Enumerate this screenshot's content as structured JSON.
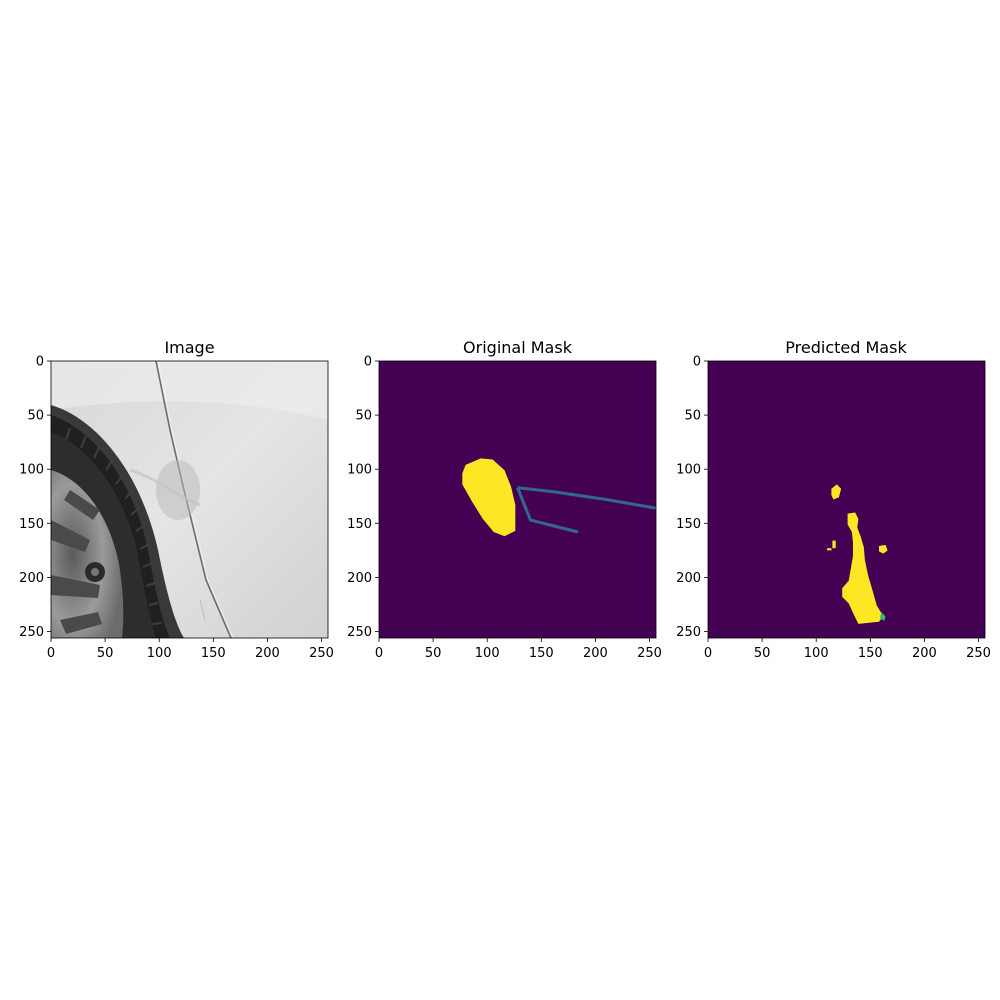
{
  "chart_data": [
    {
      "type": "image",
      "title": "Image",
      "xlim": [
        0,
        256
      ],
      "ylim": [
        256,
        0
      ],
      "xticks": [
        0,
        50,
        100,
        150,
        200,
        250
      ],
      "yticks": [
        0,
        50,
        100,
        150,
        200,
        250
      ],
      "content": "photo of a white car door with a dent near a tire"
    },
    {
      "type": "heatmap",
      "title": "Original Mask",
      "xlim": [
        0,
        256
      ],
      "ylim": [
        256,
        0
      ],
      "xticks": [
        0,
        50,
        100,
        150,
        200,
        250
      ],
      "yticks": [
        0,
        50,
        100,
        150,
        200,
        250
      ],
      "colors": {
        "background": "#440154",
        "class_1": "#fde725",
        "class_2": "#31688e"
      },
      "regions": [
        {
          "class": "class_1",
          "shape": "polygon",
          "points": [
            [
              80,
              96
            ],
            [
              94,
              90
            ],
            [
              105,
              91
            ],
            [
              116,
              101
            ],
            [
              122,
              116
            ],
            [
              126,
              133
            ],
            [
              126,
              157
            ],
            [
              116,
              162
            ],
            [
              106,
              158
            ],
            [
              96,
              146
            ],
            [
              86,
              130
            ],
            [
              77,
              114
            ],
            [
              77,
              104
            ]
          ]
        },
        {
          "class": "class_2",
          "shape": "polyline",
          "width": 3,
          "points": [
            [
              256,
              136
            ],
            [
              210,
              128
            ],
            [
              162,
              121
            ],
            [
              128,
              117
            ]
          ]
        },
        {
          "class": "class_2",
          "shape": "polyline",
          "width": 3,
          "points": [
            [
              128,
              117
            ],
            [
              140,
              147
            ],
            [
              160,
              152
            ],
            [
              184,
              158
            ]
          ]
        }
      ]
    },
    {
      "type": "heatmap",
      "title": "Predicted Mask",
      "xlim": [
        0,
        256
      ],
      "ylim": [
        256,
        0
      ],
      "xticks": [
        0,
        50,
        100,
        150,
        200,
        250
      ],
      "yticks": [
        0,
        50,
        100,
        150,
        200,
        250
      ],
      "colors": {
        "background": "#440154",
        "class_1": "#fde725",
        "edge": "#35b779"
      },
      "regions": [
        {
          "class": "class_1",
          "shape": "polygon",
          "points": [
            [
              129,
              141
            ],
            [
              136,
              140
            ],
            [
              139,
              146
            ],
            [
              138,
              154
            ],
            [
              141,
              162
            ],
            [
              144,
              172
            ],
            [
              145,
              184
            ],
            [
              148,
              198
            ],
            [
              152,
              212
            ],
            [
              156,
              226
            ],
            [
              162,
              236
            ],
            [
              158,
              241
            ],
            [
              148,
              242
            ],
            [
              139,
              243
            ],
            [
              135,
              235
            ],
            [
              130,
              224
            ],
            [
              124,
              218
            ],
            [
              124,
              210
            ],
            [
              130,
              203
            ],
            [
              132,
              192
            ],
            [
              134,
              180
            ],
            [
              134,
              168
            ],
            [
              133,
              158
            ],
            [
              129,
              151
            ]
          ]
        },
        {
          "class": "class_1",
          "shape": "polygon",
          "points": [
            [
              114,
              118
            ],
            [
              119,
              114
            ],
            [
              123,
              118
            ],
            [
              121,
              126
            ],
            [
              116,
              128
            ],
            [
              114,
              124
            ]
          ]
        },
        {
          "class": "class_1",
          "shape": "polygon",
          "points": [
            [
              158,
              171
            ],
            [
              164,
              170
            ],
            [
              166,
              175
            ],
            [
              162,
              178
            ],
            [
              158,
              176
            ]
          ]
        },
        {
          "class": "class_1",
          "shape": "polygon",
          "points": [
            [
              115,
              166
            ],
            [
              118,
              166
            ],
            [
              118,
              173
            ],
            [
              115,
              173
            ]
          ]
        },
        {
          "class": "class_1",
          "shape": "polygon",
          "points": [
            [
              110,
              173
            ],
            [
              114,
              173
            ],
            [
              114,
              175
            ],
            [
              110,
              175
            ]
          ]
        },
        {
          "class": "edge",
          "shape": "polygon",
          "points": [
            [
              160,
              232
            ],
            [
              164,
              236
            ],
            [
              163,
              240
            ],
            [
              159,
              238
            ]
          ]
        }
      ]
    }
  ]
}
